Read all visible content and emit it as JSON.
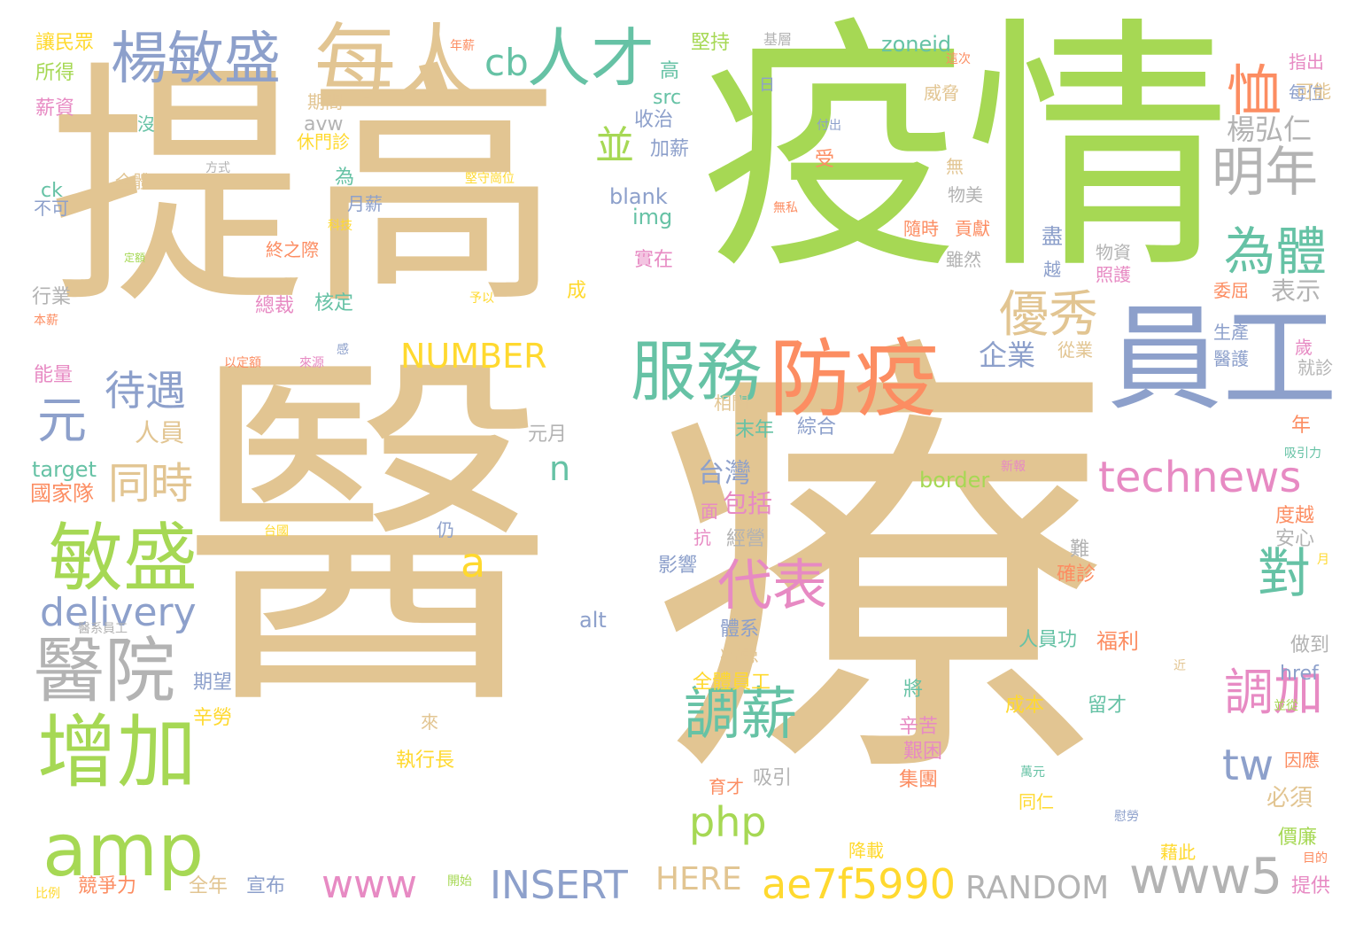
{
  "palette": {
    "tan": "#e2c592",
    "green": "#a6d854",
    "teal": "#66c2a5",
    "blue": "#8da0cb",
    "orange": "#fc8d62",
    "pink": "#e78ac3",
    "yellow": "#ffd92f",
    "gray": "#b3b3b3"
  },
  "words": [
    {
      "id": "w-yi",
      "text": "醫",
      "color": "tan"
    },
    {
      "id": "w-liao",
      "text": "療",
      "color": "tan"
    },
    {
      "id": "w-yiqing",
      "text": "疫情",
      "color": "green"
    },
    {
      "id": "w-tigao",
      "text": "提高",
      "color": "tan"
    },
    {
      "id": "w-yuangong",
      "text": "員工",
      "color": "blue"
    },
    {
      "id": "w-fangyi",
      "text": "防疫",
      "color": "orange"
    },
    {
      "id": "w-meiren",
      "text": "每人",
      "color": "tan"
    },
    {
      "id": "w-rencai",
      "text": "人才",
      "color": "teal"
    },
    {
      "id": "w-yangminsheng",
      "text": "楊敏盛",
      "color": "blue"
    },
    {
      "id": "w-cb",
      "text": "cb",
      "color": "teal"
    },
    {
      "id": "w-fuwu",
      "text": "服務",
      "color": "teal"
    },
    {
      "id": "w-zengjia",
      "text": "增加",
      "color": "green"
    },
    {
      "id": "w-minsheng",
      "text": "敏盛",
      "color": "green"
    },
    {
      "id": "w-amp",
      "text": "amp",
      "color": "green"
    },
    {
      "id": "w-yiyuan",
      "text": "醫院",
      "color": "gray"
    },
    {
      "id": "w-delivery",
      "text": "delivery",
      "color": "blue"
    },
    {
      "id": "w-daiyu",
      "text": "待遇",
      "color": "blue"
    },
    {
      "id": "w-yuan",
      "text": "元",
      "color": "blue"
    },
    {
      "id": "w-tongshi",
      "text": "同時",
      "color": "tan"
    },
    {
      "id": "w-tiaoxin",
      "text": "調薪",
      "color": "teal"
    },
    {
      "id": "w-daibiao",
      "text": "代表",
      "color": "pink"
    },
    {
      "id": "w-youxiu",
      "text": "優秀",
      "color": "tan"
    },
    {
      "id": "w-weiti",
      "text": "為體",
      "color": "teal"
    },
    {
      "id": "w-mingnian",
      "text": "明年",
      "color": "gray"
    },
    {
      "id": "w-xu",
      "text": "恤",
      "color": "orange"
    },
    {
      "id": "w-bing",
      "text": "並",
      "color": "green"
    },
    {
      "id": "w-technews",
      "text": "technews",
      "color": "pink"
    },
    {
      "id": "w-tiaojia",
      "text": "調加",
      "color": "pink"
    },
    {
      "id": "w-dui",
      "text": "對",
      "color": "teal"
    },
    {
      "id": "w-tw",
      "text": "tw",
      "color": "blue"
    },
    {
      "id": "w-www5",
      "text": "www5",
      "color": "gray"
    },
    {
      "id": "w-ae7f5990",
      "text": "ae7f5990",
      "color": "yellow"
    },
    {
      "id": "w-insert",
      "text": "INSERT",
      "color": "blue"
    },
    {
      "id": "w-www",
      "text": "www",
      "color": "pink"
    },
    {
      "id": "w-random",
      "text": "RANDOM",
      "color": "gray"
    },
    {
      "id": "w-php",
      "text": "php",
      "color": "green"
    },
    {
      "id": "w-number",
      "text": "NUMBER",
      "color": "yellow"
    },
    {
      "id": "w-a",
      "text": "a",
      "color": "yellow"
    },
    {
      "id": "w-n",
      "text": "n",
      "color": "teal"
    },
    {
      "id": "w-here",
      "text": "HERE",
      "color": "tan"
    },
    {
      "id": "w-yangyongren",
      "text": "楊弘仁",
      "color": "gray"
    },
    {
      "id": "w-biaoshi",
      "text": "表示",
      "color": "gray"
    },
    {
      "id": "w-qiye",
      "text": "企業",
      "color": "blue"
    },
    {
      "id": "w-taiwan",
      "text": "台灣",
      "color": "blue"
    },
    {
      "id": "w-baokuo",
      "text": "包括",
      "color": "pink"
    },
    {
      "id": "w-renyuan",
      "text": "人員",
      "color": "tan"
    },
    {
      "id": "w-zhongnian",
      "text": "末年",
      "color": "teal"
    },
    {
      "id": "w-zonghe",
      "text": "綜合",
      "color": "blue"
    },
    {
      "id": "w-yuanyue",
      "text": "元月",
      "color": "gray"
    },
    {
      "id": "w-target",
      "text": "target",
      "color": "teal"
    },
    {
      "id": "w-guojiadui",
      "text": "國家隊",
      "color": "orange"
    },
    {
      "id": "w-border",
      "text": "border",
      "color": "green"
    },
    {
      "id": "w-alt",
      "text": "alt",
      "color": "blue"
    },
    {
      "id": "w-blank",
      "text": "blank",
      "color": "blue"
    },
    {
      "id": "w-img",
      "text": "img",
      "color": "teal"
    },
    {
      "id": "w-src",
      "text": "src",
      "color": "teal"
    },
    {
      "id": "w-zoneid",
      "text": "zoneid",
      "color": "teal"
    },
    {
      "id": "w-avw",
      "text": "avw",
      "color": "gray"
    },
    {
      "id": "w-href",
      "text": "href",
      "color": "blue"
    },
    {
      "id": "w-ck",
      "text": "ck",
      "color": "teal"
    },
    {
      "id": "w-jianchi",
      "text": "堅持",
      "color": "green"
    },
    {
      "id": "w-shouzhi",
      "text": "收治",
      "color": "blue"
    },
    {
      "id": "w-jiaxin",
      "text": "加薪",
      "color": "blue"
    },
    {
      "id": "w-xiumenzhen",
      "text": "休門診",
      "color": "yellow"
    },
    {
      "id": "w-yuexin",
      "text": "月薪",
      "color": "blue"
    },
    {
      "id": "w-zhongzhiji",
      "text": "終之際",
      "color": "orange"
    },
    {
      "id": "w-hexin",
      "text": "核定",
      "color": "teal"
    },
    {
      "id": "w-zongcai",
      "text": "總裁",
      "color": "pink"
    },
    {
      "id": "w-shizai",
      "text": "實在",
      "color": "pink"
    },
    {
      "id": "w-suishi",
      "text": "隨時",
      "color": "orange"
    },
    {
      "id": "w-gongxian",
      "text": "貢獻",
      "color": "orange"
    },
    {
      "id": "w-wumei",
      "text": "物美",
      "color": "gray"
    },
    {
      "id": "w-suiran",
      "text": "雖然",
      "color": "gray"
    },
    {
      "id": "w-wuzi",
      "text": "物資",
      "color": "gray"
    },
    {
      "id": "w-zhaohu",
      "text": "照護",
      "color": "pink"
    },
    {
      "id": "w-weiqu",
      "text": "委屈",
      "color": "orange"
    },
    {
      "id": "w-shengchan",
      "text": "生產",
      "color": "blue"
    },
    {
      "id": "w-yihu",
      "text": "醫護",
      "color": "blue"
    },
    {
      "id": "w-congye",
      "text": "從業",
      "color": "tan"
    },
    {
      "id": "w-jiuzhen",
      "text": "就診",
      "color": "gray"
    },
    {
      "id": "w-weixie",
      "text": "威脅",
      "color": "tan"
    },
    {
      "id": "w-qijian",
      "text": "期間",
      "color": "tan"
    },
    {
      "id": "w-xinzi",
      "text": "薪資",
      "color": "pink"
    },
    {
      "id": "w-suode",
      "text": "所得",
      "color": "green"
    },
    {
      "id": "w-rangminzhong",
      "text": "讓民眾",
      "color": "yellow"
    },
    {
      "id": "w-buke",
      "text": "不可",
      "color": "blue"
    },
    {
      "id": "w-hangye",
      "text": "行業",
      "color": "gray"
    },
    {
      "id": "w-nengliang",
      "text": "能量",
      "color": "pink"
    },
    {
      "id": "w-quanti",
      "text": "全體",
      "color": "tan"
    },
    {
      "id": "w-xiangguan",
      "text": "相關",
      "color": "tan"
    },
    {
      "id": "w-jingying",
      "text": "經營",
      "color": "gray"
    },
    {
      "id": "w-yingxiang",
      "text": "影響",
      "color": "blue"
    },
    {
      "id": "w-bingbian",
      "text": "病患",
      "color": "tan"
    },
    {
      "id": "w-tixi",
      "text": "體系",
      "color": "blue"
    },
    {
      "id": "w-quantiyuangong",
      "text": "全體員工",
      "color": "yellow"
    },
    {
      "id": "w-xinku",
      "text": "辛苦",
      "color": "pink"
    },
    {
      "id": "w-jiannan",
      "text": "艱困",
      "color": "pink"
    },
    {
      "id": "w-jituan",
      "text": "集團",
      "color": "orange"
    },
    {
      "id": "w-zhixingzhang",
      "text": "執行長",
      "color": "yellow"
    },
    {
      "id": "w-xiyin",
      "text": "吸引",
      "color": "gray"
    },
    {
      "id": "w-yucai",
      "text": "育才",
      "color": "orange"
    },
    {
      "id": "w-chengben",
      "text": "成本",
      "color": "yellow"
    },
    {
      "id": "w-liucai",
      "text": "留才",
      "color": "teal"
    },
    {
      "id": "w-renyuangong",
      "text": "人員功",
      "color": "teal"
    },
    {
      "id": "w-fuli",
      "text": "福利",
      "color": "orange"
    },
    {
      "id": "w-zuodao",
      "text": "做到",
      "color": "gray"
    },
    {
      "id": "w-anxin",
      "text": "安心",
      "color": "gray"
    },
    {
      "id": "w-queren",
      "text": "確診",
      "color": "orange"
    },
    {
      "id": "w-duyue",
      "text": "度越",
      "color": "orange"
    },
    {
      "id": "w-bixu",
      "text": "必須",
      "color": "tan"
    },
    {
      "id": "w-yinying",
      "text": "因應",
      "color": "orange"
    },
    {
      "id": "w-jiangzai",
      "text": "降載",
      "color": "yellow"
    },
    {
      "id": "w-jieci",
      "text": "藉此",
      "color": "yellow"
    },
    {
      "id": "w-jialian",
      "text": "價廉",
      "color": "green"
    },
    {
      "id": "w-tigong",
      "text": "提供",
      "color": "pink"
    },
    {
      "id": "w-jingzhengli",
      "text": "競爭力",
      "color": "orange"
    },
    {
      "id": "w-quannian",
      "text": "全年",
      "color": "tan"
    },
    {
      "id": "w-xuanbu",
      "text": "宣布",
      "color": "blue"
    },
    {
      "id": "w-xinlao",
      "text": "辛勞",
      "color": "yellow"
    },
    {
      "id": "w-qiwang",
      "text": "期望",
      "color": "blue"
    },
    {
      "id": "w-tongren",
      "text": "同仁",
      "color": "yellow"
    },
    {
      "id": "w-mei-wei",
      "text": "每位",
      "color": "blue"
    },
    {
      "id": "w-keneng",
      "text": "可能",
      "color": "tan"
    },
    {
      "id": "w-zhichu",
      "text": "指出",
      "color": "pink"
    },
    {
      "id": "w-meiyou",
      "text": "沒",
      "color": "teal"
    },
    {
      "id": "w-wei",
      "text": "為",
      "color": "teal"
    },
    {
      "id": "w-wu",
      "text": "無",
      "color": "tan"
    },
    {
      "id": "w-jin",
      "text": "盡",
      "color": "blue"
    },
    {
      "id": "w-yue",
      "text": "越",
      "color": "blue"
    },
    {
      "id": "w-shou",
      "text": "受",
      "color": "orange"
    },
    {
      "id": "w-gao",
      "text": "高",
      "color": "teal"
    },
    {
      "id": "w-cheng",
      "text": "成",
      "color": "yellow"
    },
    {
      "id": "w-reng",
      "text": "仍",
      "color": "blue"
    },
    {
      "id": "w-kang",
      "text": "抗",
      "color": "pink"
    },
    {
      "id": "w-mian",
      "text": "面",
      "color": "pink"
    },
    {
      "id": "w-nan",
      "text": "難",
      "color": "gray"
    },
    {
      "id": "w-jiang",
      "text": "將",
      "color": "teal"
    },
    {
      "id": "w-lai",
      "text": "來",
      "color": "tan"
    },
    {
      "id": "w-zhiben",
      "text": "之本",
      "color": "tan"
    },
    {
      "id": "w-sui",
      "text": "歲",
      "color": "pink"
    },
    {
      "id": "w-nian",
      "text": "年",
      "color": "orange"
    },
    {
      "id": "w-ri",
      "text": "日",
      "color": "blue"
    },
    {
      "id": "w-jiceng",
      "text": "基層",
      "color": "gray"
    },
    {
      "id": "w-zheci",
      "text": "這次",
      "color": "orange"
    },
    {
      "id": "w-nianxin",
      "text": "年薪",
      "color": "orange"
    },
    {
      "id": "w-fuchu",
      "text": "付出",
      "color": "blue"
    },
    {
      "id": "w-fangshi",
      "text": "方式",
      "color": "gray"
    },
    {
      "id": "w-jianshou",
      "text": "堅守崗位",
      "color": "yellow"
    },
    {
      "id": "w-wusi",
      "text": "無私",
      "color": "orange"
    },
    {
      "id": "w-keji",
      "text": "科技",
      "color": "yellow"
    },
    {
      "id": "w-dinge",
      "text": "定額",
      "color": "green"
    },
    {
      "id": "w-yuyi",
      "text": "予以",
      "color": "yellow"
    },
    {
      "id": "w-benxin",
      "text": "本薪",
      "color": "orange"
    },
    {
      "id": "w-gan",
      "text": "感",
      "color": "blue"
    },
    {
      "id": "w-yidinge",
      "text": "以定額",
      "color": "orange"
    },
    {
      "id": "w-laiyuan",
      "text": "來源",
      "color": "pink"
    },
    {
      "id": "w-xinbao",
      "text": "新報",
      "color": "pink"
    },
    {
      "id": "w-xiyinli",
      "text": "吸引力",
      "color": "teal"
    },
    {
      "id": "w-yue2",
      "text": "月",
      "color": "yellow"
    },
    {
      "id": "w-jin2",
      "text": "近",
      "color": "tan"
    },
    {
      "id": "w-bingcong",
      "text": "並從",
      "color": "green"
    },
    {
      "id": "w-wanyuan",
      "text": "萬元",
      "color": "teal"
    },
    {
      "id": "w-weilao",
      "text": "慰勞",
      "color": "blue"
    },
    {
      "id": "w-mudi",
      "text": "目的",
      "color": "orange"
    },
    {
      "id": "w-taidian",
      "text": "台國",
      "color": "yellow"
    },
    {
      "id": "w-kaishi",
      "text": "開始",
      "color": "green"
    },
    {
      "id": "w-bili",
      "text": "比例",
      "color": "yellow"
    },
    {
      "id": "w-yixiyuangong",
      "text": "醫系員工",
      "color": "gray"
    }
  ]
}
